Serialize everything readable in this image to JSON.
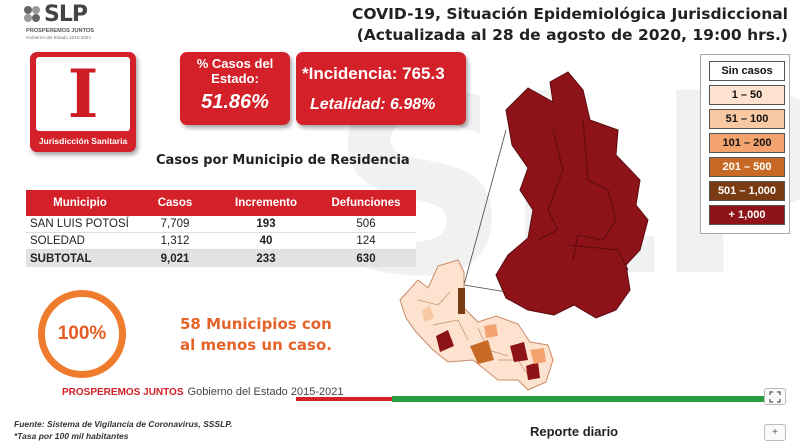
{
  "logo": {
    "text": "SLP",
    "tagline": "PROSPEREMOS JUNTOS",
    "sub": "Gobierno del Estado 2015-2021"
  },
  "header": {
    "line1": "COVID-19, Situación Epidemiológica Jurisdiccional",
    "line2": "(Actualizada al 28 de agosto de 2020, 19:00 hrs.)"
  },
  "jurisdiction": {
    "numeral": "I",
    "caption": "Jurisdicción Sanitaria"
  },
  "state_share": {
    "title": "% Casos del Estado:",
    "value": "51.86%"
  },
  "rates": {
    "incidence": "*Incidencia: 765.3",
    "lethality": "Letalidad: 6.98%"
  },
  "table": {
    "title": "Casos por Municipio  de Residencia",
    "headers": [
      "Municipio",
      "Casos",
      "Incremento",
      "Defunciones"
    ],
    "rows": [
      [
        "SAN LUIS POTOSÍ",
        "7,709",
        "193",
        "506"
      ],
      [
        "SOLEDAD",
        "1,312",
        "40",
        "124"
      ]
    ],
    "subtotal": [
      "SUBTOTAL",
      "9,021",
      "233",
      "630"
    ]
  },
  "coverage": {
    "percent": "100%",
    "line1_num": "58",
    "line1_text": "Municipios con",
    "line2": "al menos un caso."
  },
  "legend": {
    "items": [
      {
        "label": "Sin casos",
        "color": "#ffffff",
        "text_color": "#111111"
      },
      {
        "label": "1 – 50",
        "color": "#fde3cf",
        "text_color": "#111111"
      },
      {
        "label": "51 – 100",
        "color": "#f9c9a3",
        "text_color": "#111111"
      },
      {
        "label": "101 – 200",
        "color": "#f2a36e",
        "text_color": "#111111"
      },
      {
        "label": "201 – 500",
        "color": "#c86a27",
        "text_color": "#ffffff"
      },
      {
        "label": "501 – 1,000",
        "color": "#7a3b12",
        "text_color": "#ffffff"
      },
      {
        "label": "+ 1,000",
        "color": "#8e1318",
        "text_color": "#ffffff"
      }
    ]
  },
  "footer": {
    "brand": "PROSPEREMOS JUNTOS",
    "gov": "Gobierno del Estado 2015-2021",
    "source": "Fuente: Sistema de Vigilancia de Coronavirus, SSSLP.",
    "note": "*Tasa por 100 mil habitantes",
    "report": "Reporte diario"
  },
  "controls": {
    "fit_icon": "fit-screen-icon",
    "plus_label": "+"
  },
  "watermark": "SLP",
  "colors": {
    "red": "#d42028",
    "dark_red": "#8e1318",
    "orange": "#ef7b2d",
    "green": "#2a9d3f"
  }
}
